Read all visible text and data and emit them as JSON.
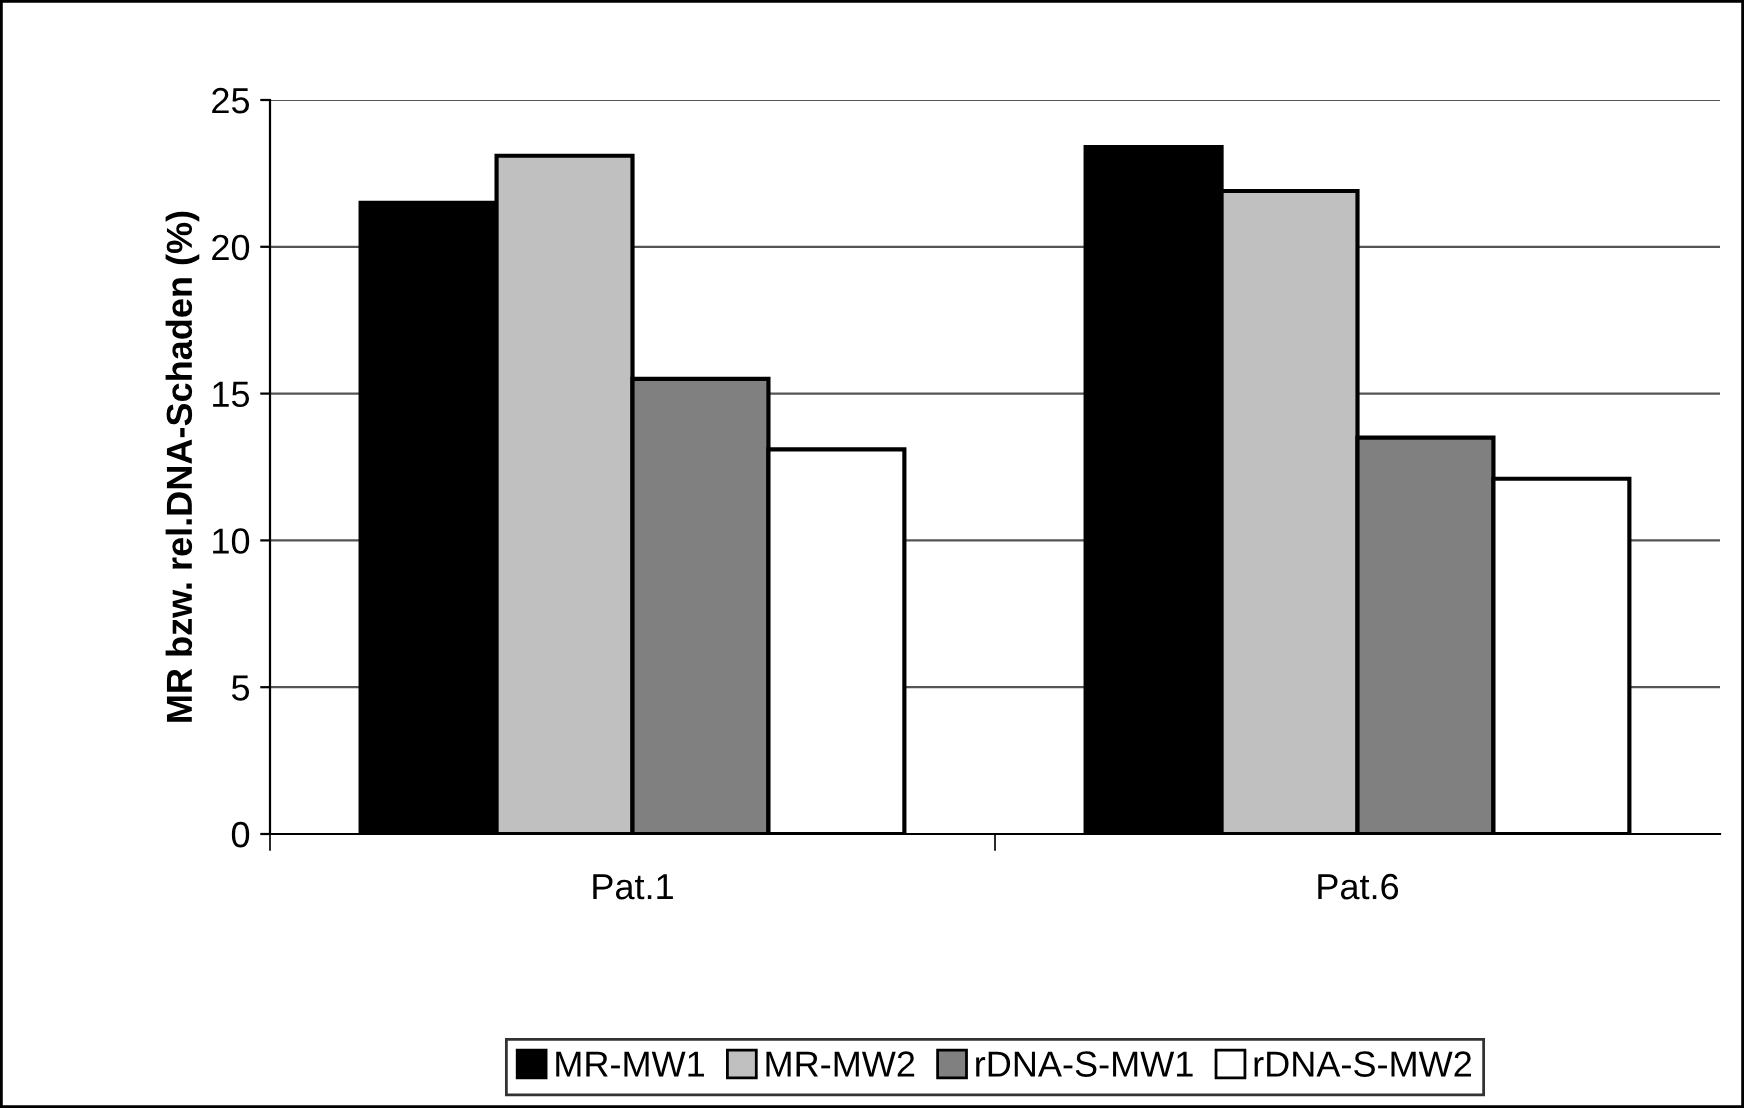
{
  "chart_data": {
    "type": "bar",
    "ylabel": "MR bzw. rel.DNA-Schaden (%)",
    "categories": [
      "Pat.1",
      "Pat.6"
    ],
    "series": [
      {
        "name": "MR-MW1",
        "color": "#000000",
        "values": [
          21.5,
          23.4
        ]
      },
      {
        "name": "MR-MW2",
        "color": "#c0c0c0",
        "values": [
          23.1,
          21.9
        ]
      },
      {
        "name": "rDNA-S-MW1",
        "color": "#808080",
        "values": [
          15.5,
          13.5
        ]
      },
      {
        "name": "rDNA-S-MW2",
        "color": "#ffffff",
        "values": [
          13.1,
          12.1
        ]
      }
    ],
    "ylim": [
      0,
      25
    ],
    "yticks": [
      0,
      5,
      10,
      15,
      20,
      25
    ],
    "grid": "y",
    "legend": "bottom"
  }
}
